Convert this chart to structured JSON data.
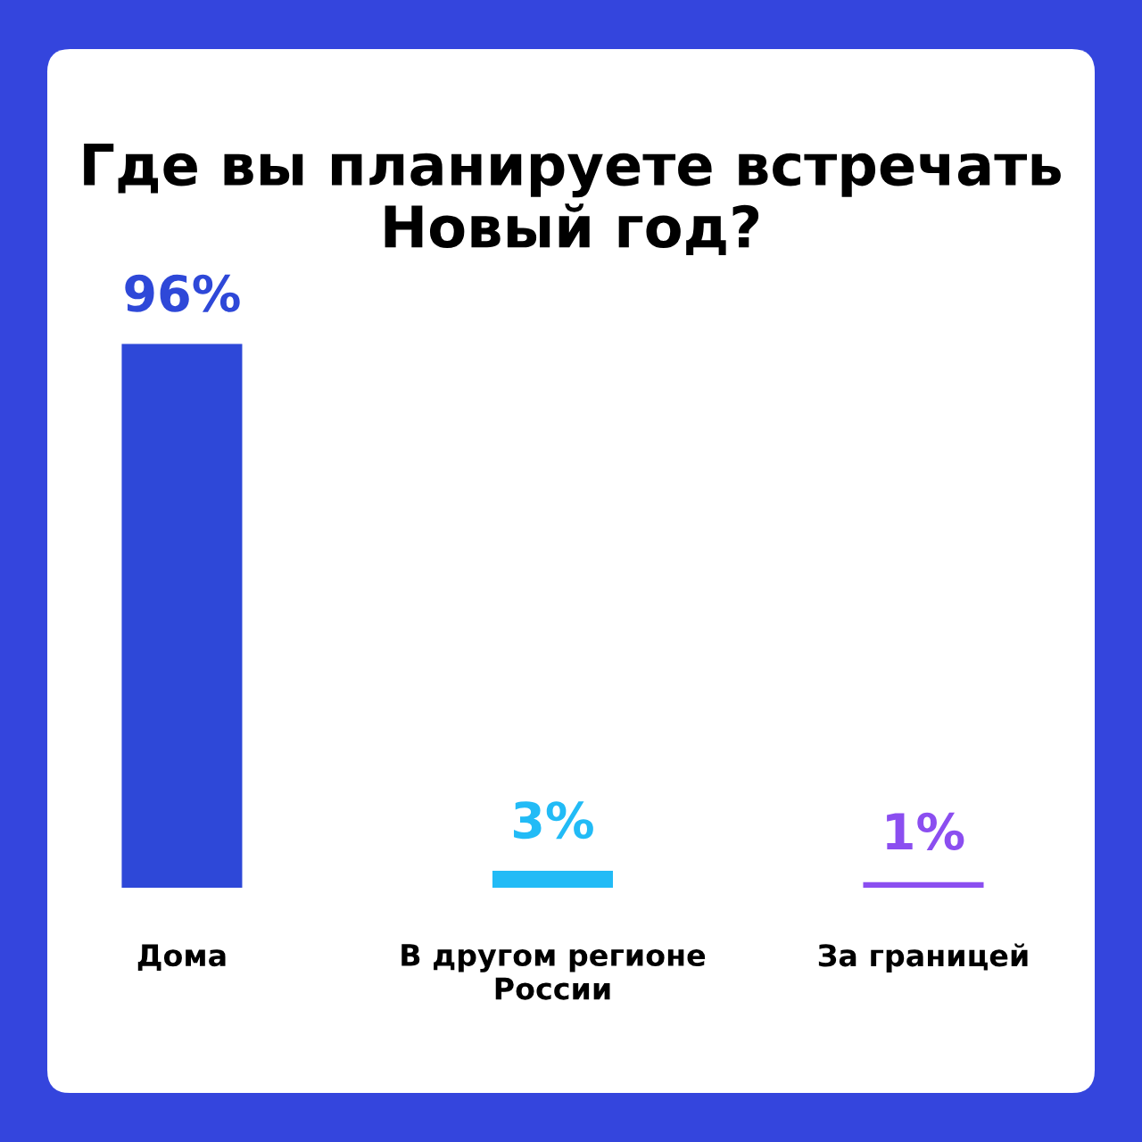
{
  "chart_data": {
    "type": "bar",
    "title": "Где вы планируете встречать\nНовый год?",
    "categories": [
      "Дома",
      "В другом регионе\nРоссии",
      "За границей"
    ],
    "values": [
      96,
      3,
      1
    ],
    "colors": [
      "#2e48d8",
      "#22bbf6",
      "#8b4ef0"
    ],
    "value_labels": [
      "96%",
      "3%",
      "1%"
    ],
    "grid": false,
    "legend": false
  }
}
